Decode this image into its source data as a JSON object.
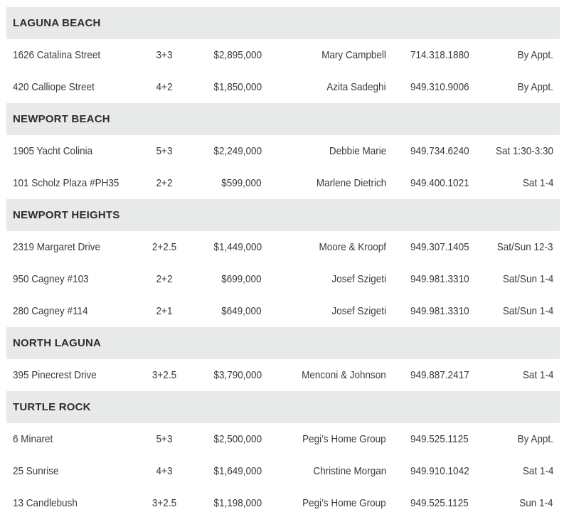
{
  "sections": [
    {
      "name": "LAGUNA BEACH",
      "listings": [
        {
          "address": "1626 Catalina Street",
          "beds_baths": "3+3",
          "price": "$2,895,000",
          "agent": "Mary Campbell",
          "phone": "714.318.1880",
          "open_house": "By Appt."
        },
        {
          "address": "420 Calliope Street",
          "beds_baths": "4+2",
          "price": "$1,850,000",
          "agent": "Azita Sadeghi",
          "phone": "949.310.9006",
          "open_house": "By Appt."
        }
      ]
    },
    {
      "name": "NEWPORT BEACH",
      "listings": [
        {
          "address": "1905 Yacht Colinia",
          "beds_baths": "5+3",
          "price": "$2,249,000",
          "agent": "Debbie Marie",
          "phone": "949.734.6240",
          "open_house": "Sat 1:30-3:30"
        },
        {
          "address": "101 Scholz Plaza #PH35",
          "beds_baths": "2+2",
          "price": "$599,000",
          "agent": "Marlene Dietrich",
          "phone": "949.400.1021",
          "open_house": "Sat 1-4"
        }
      ]
    },
    {
      "name": "NEWPORT HEIGHTS",
      "listings": [
        {
          "address": "2319 Margaret Drive",
          "beds_baths": "2+2.5",
          "price": "$1,449,000",
          "agent": "Moore & Kroopf",
          "phone": "949.307.1405",
          "open_house": "Sat/Sun 12-3"
        },
        {
          "address": "950 Cagney #103",
          "beds_baths": "2+2",
          "price": "$699,000",
          "agent": "Josef Szigeti",
          "phone": "949.981.3310",
          "open_house": "Sat/Sun 1-4"
        },
        {
          "address": "280 Cagney #114",
          "beds_baths": "2+1",
          "price": "$649,000",
          "agent": "Josef Szigeti",
          "phone": "949.981.3310",
          "open_house": "Sat/Sun 1-4"
        }
      ]
    },
    {
      "name": "NORTH LAGUNA",
      "listings": [
        {
          "address": "395 Pinecrest Drive",
          "beds_baths": "3+2.5",
          "price": "$3,790,000",
          "agent": "Menconi & Johnson",
          "phone": "949.887.2417",
          "open_house": "Sat 1-4"
        }
      ]
    },
    {
      "name": "TURTLE ROCK",
      "listings": [
        {
          "address": "6 Minaret",
          "beds_baths": "5+3",
          "price": "$2,500,000",
          "agent": "Pegi’s Home Group",
          "phone": "949.525.1125",
          "open_house": "By Appt."
        },
        {
          "address": "25 Sunrise",
          "beds_baths": "4+3",
          "price": "$1,649,000",
          "agent": "Christine Morgan",
          "phone": "949.910.1042",
          "open_house": "Sat 1-4"
        },
        {
          "address": "13 Candlebush",
          "beds_baths": "3+2.5",
          "price": "$1,198,000",
          "agent": "Pegi’s Home Group",
          "phone": "949.525.1125",
          "open_house": "Sun 1-4"
        }
      ]
    }
  ],
  "colors": {
    "header_bg": "#e8eae9",
    "text": "#3a3a3a"
  }
}
